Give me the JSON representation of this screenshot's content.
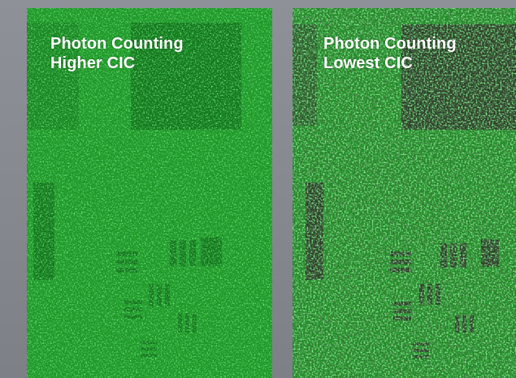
{
  "panels": [
    {
      "caption_line1": "Photon Counting",
      "caption_line2": "Higher CIC"
    },
    {
      "caption_line1": "Photon Counting",
      "caption_line2": "Lowest CIC"
    }
  ],
  "colors": {
    "page_background": "#868990",
    "green_bright": "#3dd44a",
    "green_mid": "#1f9a26",
    "green_dark": "#0e5a12",
    "target_dark_right": "#2a2a24",
    "caption_text": "#ffffff"
  }
}
